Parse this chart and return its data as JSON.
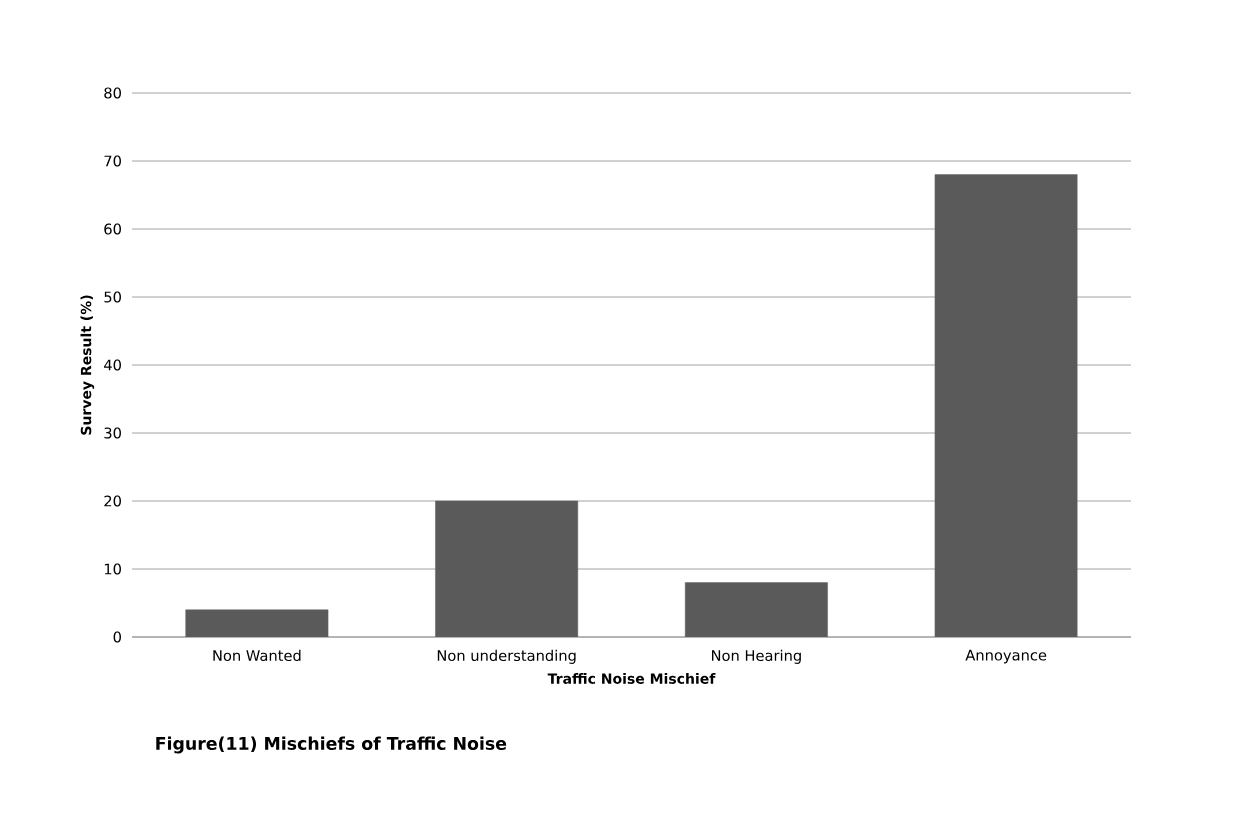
{
  "chart_data": {
    "type": "bar",
    "categories": [
      "Non Wanted",
      "Non understanding",
      "Non Hearing",
      "Annoyance"
    ],
    "values": [
      4,
      20,
      8,
      68
    ],
    "color": "#5a5a5a",
    "xlabel": "Traffic Noise Mischief",
    "ylabel": "Survey Result (%)",
    "ylim": [
      0,
      80
    ],
    "yticks": [
      0,
      10,
      20,
      30,
      40,
      50,
      60,
      70,
      80
    ],
    "grid": "y",
    "annotations": [
      "Figure(11) Mischiefs of Traffic Noise"
    ]
  }
}
